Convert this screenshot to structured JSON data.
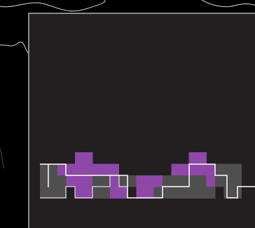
{
  "scene": {
    "description_colors": {
      "background": "#000000",
      "panel": "#231f20",
      "panel_border": "#8a8a8a",
      "row_fill": "#4f4f4f",
      "highlight": "#8e48a8",
      "trace": "#ffffff",
      "contour": "#d8d8d8"
    }
  },
  "pattern": {
    "rows": 4,
    "states": [
      [
        0,
        0,
        0,
        0,
        1,
        1,
        0,
        0,
        0,
        0,
        0,
        0,
        0,
        0,
        0,
        0,
        0,
        1,
        1,
        0,
        0,
        0,
        0
      ],
      [
        2,
        2,
        1,
        1,
        1,
        1,
        1,
        1,
        1,
        0,
        0,
        0,
        0,
        0,
        0,
        1,
        1,
        1,
        1,
        1,
        2,
        2,
        2
      ],
      [
        2,
        2,
        2,
        1,
        1,
        1,
        2,
        2,
        1,
        2,
        2,
        1,
        1,
        1,
        2,
        2,
        2,
        2,
        2,
        1,
        2,
        2,
        2
      ],
      [
        2,
        2,
        2,
        0,
        1,
        1,
        2,
        2,
        1,
        1,
        0,
        1,
        1,
        2,
        2,
        2,
        2,
        2,
        2,
        2,
        0,
        2,
        2
      ]
    ]
  }
}
